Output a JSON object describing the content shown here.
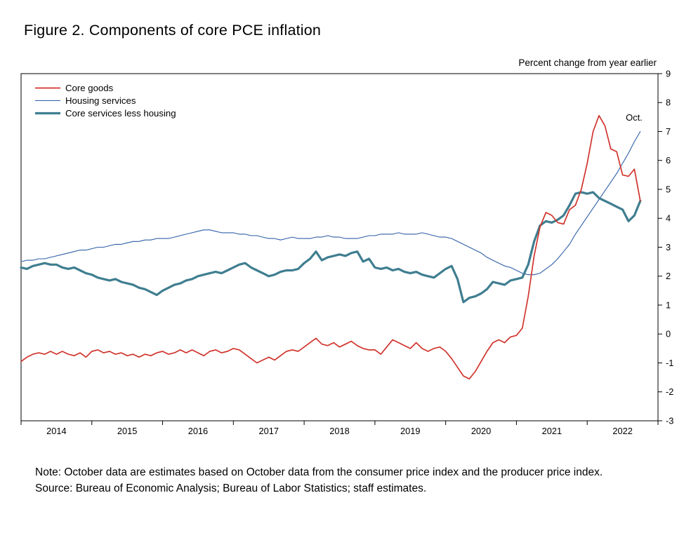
{
  "figure": {
    "title": "Figure 2. Components of core PCE inflation",
    "unit_label": "Percent change from year earlier",
    "annotation": "Oct.",
    "note": "Note: October data are estimates based on October data from the consumer price index and the producer price index.",
    "source": "Source: Bureau of Economic Analysis; Bureau of Labor Statistics; staff estimates."
  },
  "chart_data": {
    "type": "line",
    "frequency": "monthly",
    "x_start": "2014-01",
    "x_end": "2022-10",
    "xlim": [
      2014,
      2023
    ],
    "ylim": [
      -3,
      9
    ],
    "y_ticks": [
      9,
      8,
      7,
      6,
      5,
      4,
      3,
      2,
      1,
      0,
      -1,
      -2,
      -3
    ],
    "x_tick_labels": [
      "2014",
      "2015",
      "2016",
      "2017",
      "2018",
      "2019",
      "2020",
      "2021",
      "2022"
    ],
    "grid": false,
    "legend_position": "top-left",
    "axis_color": "#000000",
    "series": [
      {
        "name": "Core goods",
        "color": "#d0342c",
        "width": 1.7,
        "values": [
          -0.95,
          -0.8,
          -0.7,
          -0.65,
          -0.7,
          -0.6,
          -0.7,
          -0.6,
          -0.7,
          -0.75,
          -0.65,
          -0.8,
          -0.6,
          -0.55,
          -0.65,
          -0.6,
          -0.7,
          -0.65,
          -0.75,
          -0.7,
          -0.8,
          -0.7,
          -0.75,
          -0.65,
          -0.6,
          -0.7,
          -0.65,
          -0.55,
          -0.65,
          -0.55,
          -0.65,
          -0.75,
          -0.6,
          -0.55,
          -0.65,
          -0.6,
          -0.5,
          -0.55,
          -0.7,
          -0.85,
          -1.0,
          -0.9,
          -0.8,
          -0.9,
          -0.75,
          -0.6,
          -0.55,
          -0.6,
          -0.45,
          -0.3,
          -0.15,
          -0.35,
          -0.4,
          -0.3,
          -0.45,
          -0.35,
          -0.25,
          -0.4,
          -0.5,
          -0.55,
          -0.55,
          -0.7,
          -0.45,
          -0.2,
          -0.3,
          -0.4,
          -0.5,
          -0.3,
          -0.5,
          -0.6,
          -0.5,
          -0.45,
          -0.6,
          -0.85,
          -1.15,
          -1.45,
          -1.55,
          -1.3,
          -0.95,
          -0.6,
          -0.3,
          -0.2,
          -0.3,
          -0.1,
          -0.05,
          0.2,
          1.3,
          2.7,
          3.7,
          4.2,
          4.1,
          3.85,
          3.8,
          4.3,
          4.45,
          5.0,
          5.9,
          7.0,
          7.55,
          7.2,
          6.4,
          6.3,
          5.5,
          5.45,
          5.7,
          4.6
        ]
      },
      {
        "name": "Housing services",
        "color": "#2f5ea8",
        "width": 1.1,
        "values": [
          2.5,
          2.55,
          2.55,
          2.6,
          2.6,
          2.65,
          2.7,
          2.75,
          2.8,
          2.85,
          2.9,
          2.9,
          2.95,
          3.0,
          3.0,
          3.05,
          3.1,
          3.1,
          3.15,
          3.2,
          3.2,
          3.25,
          3.25,
          3.3,
          3.3,
          3.3,
          3.35,
          3.4,
          3.45,
          3.5,
          3.55,
          3.6,
          3.6,
          3.55,
          3.5,
          3.5,
          3.5,
          3.45,
          3.45,
          3.4,
          3.4,
          3.35,
          3.3,
          3.3,
          3.25,
          3.3,
          3.35,
          3.3,
          3.3,
          3.3,
          3.35,
          3.35,
          3.4,
          3.35,
          3.35,
          3.3,
          3.3,
          3.3,
          3.35,
          3.4,
          3.4,
          3.45,
          3.45,
          3.45,
          3.5,
          3.45,
          3.45,
          3.45,
          3.5,
          3.45,
          3.4,
          3.35,
          3.35,
          3.3,
          3.2,
          3.1,
          3.0,
          2.9,
          2.8,
          2.65,
          2.55,
          2.45,
          2.35,
          2.3,
          2.2,
          2.1,
          2.05,
          2.05,
          2.1,
          2.25,
          2.4,
          2.6,
          2.85,
          3.1,
          3.45,
          3.75,
          4.05,
          4.35,
          4.65,
          4.95,
          5.25,
          5.55,
          5.9,
          6.25,
          6.65,
          7.0
        ]
      },
      {
        "name": "Core services less housing",
        "color": "#3f7e90",
        "width": 3.2,
        "values": [
          2.3,
          2.25,
          2.35,
          2.4,
          2.45,
          2.4,
          2.4,
          2.3,
          2.25,
          2.3,
          2.2,
          2.1,
          2.05,
          1.95,
          1.9,
          1.85,
          1.9,
          1.8,
          1.75,
          1.7,
          1.6,
          1.55,
          1.45,
          1.35,
          1.5,
          1.6,
          1.7,
          1.75,
          1.85,
          1.9,
          2.0,
          2.05,
          2.1,
          2.15,
          2.1,
          2.2,
          2.3,
          2.4,
          2.45,
          2.3,
          2.2,
          2.1,
          2.0,
          2.05,
          2.15,
          2.2,
          2.2,
          2.25,
          2.45,
          2.6,
          2.85,
          2.55,
          2.65,
          2.7,
          2.75,
          2.7,
          2.8,
          2.85,
          2.5,
          2.6,
          2.3,
          2.25,
          2.3,
          2.2,
          2.25,
          2.15,
          2.1,
          2.15,
          2.05,
          2.0,
          1.95,
          2.1,
          2.25,
          2.35,
          1.9,
          1.1,
          1.25,
          1.3,
          1.4,
          1.55,
          1.8,
          1.75,
          1.7,
          1.85,
          1.9,
          1.95,
          2.4,
          3.2,
          3.75,
          3.9,
          3.85,
          3.95,
          4.1,
          4.45,
          4.85,
          4.9,
          4.85,
          4.9,
          4.7,
          4.6,
          4.5,
          4.4,
          4.3,
          3.9,
          4.1,
          4.6
        ]
      }
    ]
  }
}
